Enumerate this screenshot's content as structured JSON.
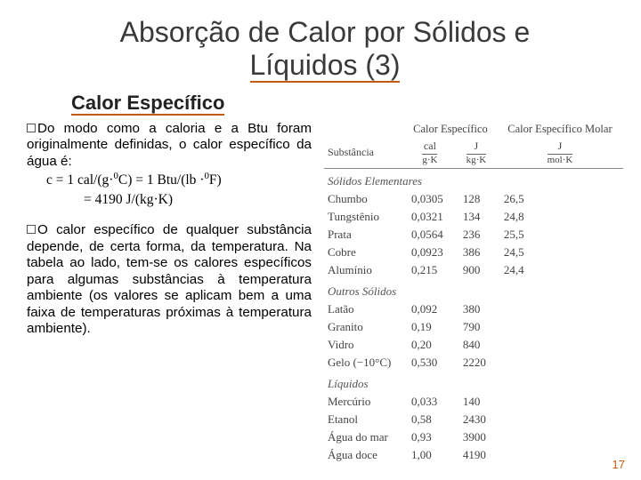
{
  "title_l1": "Absorção de Calor por Sólidos e",
  "title_l2": "Líquidos (3)",
  "subtitle": "Calor Específico",
  "b1_lead": "Do",
  "b1_rest": " modo como a caloria e a Btu foram originalmente definidas, o calor específico da água é:",
  "f1": "c = 1 cal/(g·",
  "f1b": "C) = 1 Btu/(lb ·",
  "f1c": "F)",
  "f2": "= 4190 J/(kg·K)",
  "b2_lead": "O",
  "b2_rest": " calor específico de qualquer substância depende, de certa forma, da temperatura. Na tabela ao lado, tem-se os calores específicos para algumas substâncias à temperatura ambiente (os valores se aplicam bem a uma faixa de temperaturas próximas à temperatura ambiente).",
  "hdr_sub": "Substância",
  "hdr_ce": "Calor Específico",
  "hdr_cm": "Calor Específico Molar",
  "u_cal": "cal g·K",
  "u_j": "J kg·K",
  "u_mol": "J mol·K",
  "sec_se": "Sólidos Elementares",
  "sec_os": "Outros Sólidos",
  "sec_lq": "Líquidos",
  "rows_se": [
    [
      "Chumbo",
      "0,0305",
      "128",
      "26,5"
    ],
    [
      "Tungstênio",
      "0,0321",
      "134",
      "24,8"
    ],
    [
      "Prata",
      "0,0564",
      "236",
      "25,5"
    ],
    [
      "Cobre",
      "0,0923",
      "386",
      "24,5"
    ],
    [
      "Alumínio",
      "0,215",
      "900",
      "24,4"
    ]
  ],
  "rows_os": [
    [
      "Latão",
      "0,092",
      "380",
      ""
    ],
    [
      "Granito",
      "0,19",
      "790",
      ""
    ],
    [
      "Vidro",
      "0,20",
      "840",
      ""
    ],
    [
      "Gelo (−10°C)",
      "0,530",
      "2220",
      ""
    ]
  ],
  "rows_lq": [
    [
      "Mercúrio",
      "0,033",
      "140",
      ""
    ],
    [
      "Etanol",
      "0,58",
      "2430",
      ""
    ],
    [
      "Água do mar",
      "0,93",
      "3900",
      ""
    ],
    [
      "Água doce",
      "1,00",
      "4190",
      ""
    ]
  ],
  "page": "17"
}
